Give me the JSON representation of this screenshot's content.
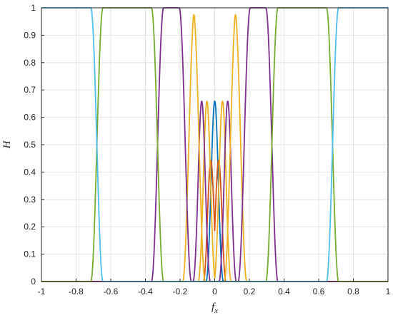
{
  "chart_data": {
    "type": "line",
    "title": "",
    "xlabel": "f",
    "xlabel_sub": "x",
    "ylabel": "H",
    "xlim": [
      -1,
      1
    ],
    "ylim": [
      0,
      1
    ],
    "grid": true,
    "xticks": [
      -1,
      -0.8,
      -0.6,
      -0.4,
      -0.2,
      0,
      0.2,
      0.4,
      0.6,
      0.8,
      1
    ],
    "xtick_labels": [
      "-1",
      "-0.8",
      "-0.6",
      "-0.4",
      "-0.2",
      "0",
      "0.2",
      "0.4",
      "0.6",
      "0.8",
      "1"
    ],
    "yticks": [
      0,
      0.1,
      0.2,
      0.3,
      0.4,
      0.5,
      0.6,
      0.7,
      0.8,
      0.9,
      1
    ],
    "ytick_labels": [
      "0",
      "0.1",
      "0.2",
      "0.3",
      "0.4",
      "0.5",
      "0.6",
      "0.7",
      "0.8",
      "0.9",
      "1"
    ],
    "transition_half_width": 0.035,
    "series": [
      {
        "color": "#0072BD",
        "segments": [
          [
            -0.015,
            0.015
          ]
        ]
      },
      {
        "color": "#D95319",
        "segments": [
          [
            -0.03,
            -0.015
          ],
          [
            0.015,
            0.03
          ]
        ]
      },
      {
        "color": "#EDB120",
        "segments": [
          [
            -0.06,
            -0.03
          ],
          [
            0.03,
            0.06
          ]
        ]
      },
      {
        "color": "#7E2F8E",
        "segments": [
          [
            -0.09,
            -0.06
          ],
          [
            0.06,
            0.09
          ]
        ]
      },
      {
        "color": "#EDB120",
        "segments": [
          [
            -0.15,
            -0.09
          ],
          [
            0.09,
            0.15
          ]
        ]
      },
      {
        "color": "#7E2F8E",
        "segments": [
          [
            -0.33,
            -0.17
          ],
          [
            0.17,
            0.33
          ]
        ]
      },
      {
        "color": "#77AC30",
        "segments": [
          [
            -0.68,
            -0.33
          ],
          [
            0.33,
            0.68
          ]
        ]
      },
      {
        "color": "#4DBEEE",
        "segments": [
          [
            -1,
            -0.68
          ],
          [
            0.68,
            1
          ]
        ]
      }
    ]
  }
}
